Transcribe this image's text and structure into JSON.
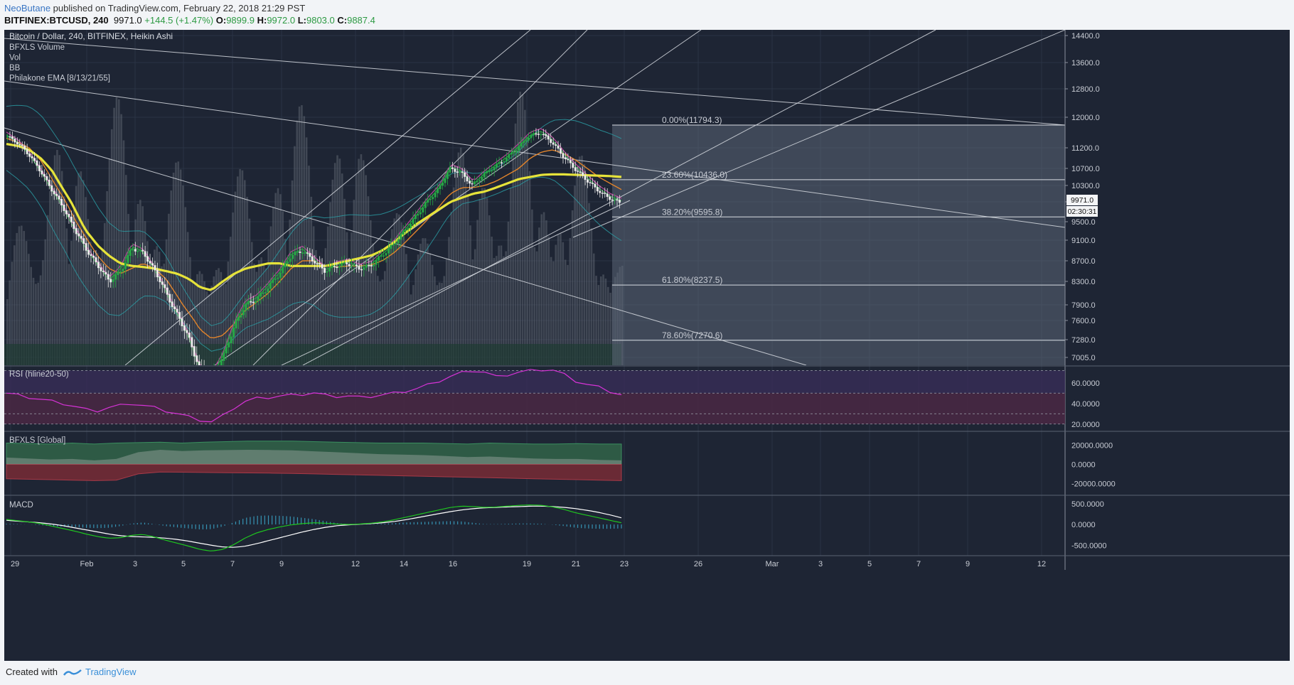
{
  "header": {
    "publisher": "NeoButane",
    "published_text": " published on TradingView.com, February 22, 2018 21:29 PST",
    "symbol": "BITFINEX:BTCUSD, 240",
    "last": "9971.0",
    "change": "+144.5 (+1.47%)",
    "o_label": "O:",
    "o": "9899.9",
    "h_label": "H:",
    "h": "9972.0",
    "l_label": "L:",
    "l": "9803.0",
    "c_label": "C:",
    "c": "9887.4"
  },
  "legend": {
    "title": "Bitcoin / Dollar, 240, BITFINEX, Heikin Ashi",
    "items": [
      "BFXLS Volume",
      "Vol",
      "BB",
      "Philakone EMA [8/13/21/55]"
    ]
  },
  "footer": {
    "created_with": "Created with",
    "brand": "TradingView"
  },
  "colors": {
    "background": "#1e2534",
    "grid": "#2a3345",
    "up_candle": "#26a745",
    "down_candle": "#e8e8e8",
    "ema55": "#e6e33a",
    "ema21": "#e2842b",
    "ema13": "#b8459b",
    "ema8": "#2d9a43",
    "bb": "#2aa0a8",
    "rsi": "#d633d6",
    "macd": "#1fc61f",
    "signal": "#ffffff",
    "hist": "#3aa6c8"
  },
  "chart_data": [
    {
      "type": "candlestick",
      "title": "Bitcoin / Dollar, 240, BITFINEX, Heikin Ashi",
      "y_ticks": [
        "14400.0",
        "13600.0",
        "12800.0",
        "12000.0",
        "11200.0",
        "10700.0",
        "10300.0",
        "9900.0",
        "9500.0",
        "9100.0",
        "8700.0",
        "8300.0",
        "7900.0",
        "7600.0",
        "7280.0",
        "7005.0"
      ],
      "last_price_label": "9971.0",
      "countdown_label": "02:30:31",
      "x_ticks": [
        "29",
        "Feb",
        "3",
        "5",
        "7",
        "9",
        "12",
        "14",
        "16",
        "19",
        "21",
        "23",
        "26",
        "Mar",
        "3",
        "5",
        "7",
        "9",
        "12"
      ],
      "price_path": [
        11500,
        11300,
        11000,
        10600,
        10150,
        9750,
        9300,
        8900,
        8600,
        8300,
        8500,
        8950,
        8850,
        8500,
        8100,
        7700,
        7300,
        6800,
        6700,
        7000,
        7500,
        7900,
        8000,
        8200,
        8450,
        8800,
        8900,
        8700,
        8500,
        8600,
        8650,
        8550,
        8600,
        8800,
        9000,
        9300,
        9600,
        9900,
        10200,
        10700,
        10600,
        10300,
        10550,
        10750,
        10950,
        11200,
        11500,
        11600,
        11350,
        11000,
        10700,
        10450,
        10200,
        10000,
        9887
      ],
      "ema55_path": [
        11300,
        11250,
        11150,
        10950,
        10650,
        10200,
        9750,
        9300,
        9000,
        8800,
        8650,
        8600,
        8580,
        8550,
        8500,
        8450,
        8350,
        8200,
        8150,
        8300,
        8450,
        8550,
        8600,
        8650,
        8650,
        8600,
        8600,
        8600,
        8600,
        8650,
        8700,
        8750,
        8800,
        8900,
        9050,
        9250,
        9450,
        9600,
        9750,
        9900,
        10000,
        10100,
        10150,
        10250,
        10350,
        10450,
        10500,
        10550,
        10560,
        10560,
        10550,
        10540,
        10530,
        10520,
        10500
      ],
      "ema21_path": [
        11450,
        11350,
        11200,
        10900,
        10450,
        10000,
        9550,
        9150,
        8800,
        8550,
        8450,
        8550,
        8650,
        8550,
        8350,
        8050,
        7750,
        7450,
        7300,
        7350,
        7550,
        7800,
        7950,
        8100,
        8300,
        8550,
        8700,
        8700,
        8600,
        8580,
        8600,
        8600,
        8620,
        8700,
        8850,
        9050,
        9300,
        9550,
        9800,
        10100,
        10250,
        10250,
        10300,
        10400,
        10550,
        10700,
        10950,
        11100,
        11150,
        11050,
        10900,
        10700,
        10500,
        10350,
        10200
      ],
      "fib_levels": [
        {
          "label": "0.00%(11794.3)",
          "price": 11794.3
        },
        {
          "label": "23.60%(10436.0)",
          "price": 10436.0
        },
        {
          "label": "38.20%(9595.8)",
          "price": 9595.8
        },
        {
          "label": "61.80%(8237.5)",
          "price": 8237.5
        },
        {
          "label": "78.60%(7270.6)",
          "price": 7270.6
        }
      ]
    },
    {
      "type": "line",
      "title": "RSI (hline20-50)",
      "y_ticks": [
        "60.0000",
        "40.0000",
        "20.0000"
      ],
      "ylim": [
        15,
        75
      ],
      "values": [
        50,
        48,
        46,
        44,
        42,
        40,
        37,
        34,
        33,
        36,
        38,
        40,
        38,
        36,
        33,
        30,
        27,
        24,
        22,
        28,
        36,
        42,
        45,
        46,
        47,
        48,
        49,
        50,
        48,
        47,
        47,
        46,
        47,
        48,
        50,
        52,
        54,
        58,
        62,
        66,
        70,
        72,
        70,
        66,
        68,
        70,
        72,
        73,
        72,
        68,
        62,
        58,
        56,
        52,
        48
      ]
    },
    {
      "type": "area",
      "title": "BFXLS [Global]",
      "y_ticks": [
        "20000.0000",
        "0.0000",
        "-20000.0000"
      ],
      "ylim": [
        -30000,
        32000
      ],
      "longs": [
        22000,
        21500,
        21000,
        22000,
        21000,
        22000,
        22500,
        23000,
        22000,
        23000,
        23500,
        24000,
        24000,
        24000,
        23500,
        23000,
        22500,
        22000,
        22000,
        22000,
        21500,
        21000,
        22000,
        21500,
        21000,
        21000,
        21500,
        21000,
        21000
      ],
      "shorts": [
        -15000,
        -15500,
        -16000,
        -16500,
        -17000,
        -16500,
        -10000,
        -8000,
        -8200,
        -8500,
        -8800,
        -9000,
        -9200,
        -9500,
        -10000,
        -10500,
        -11000,
        -11500,
        -12000,
        -12500,
        -13000,
        -13500,
        -14000,
        -14500,
        -15000,
        -15500,
        -16000,
        -16500,
        -17000
      ]
    },
    {
      "type": "line",
      "title": "MACD",
      "y_ticks": [
        "500.0000",
        "0.0000",
        "-500.0000"
      ],
      "ylim": [
        -750,
        650
      ],
      "macd": [
        120,
        90,
        60,
        20,
        -40,
        -100,
        -160,
        -230,
        -290,
        -330,
        -320,
        -260,
        -240,
        -300,
        -380,
        -450,
        -520,
        -600,
        -640,
        -600,
        -480,
        -320,
        -200,
        -120,
        -60,
        -10,
        20,
        40,
        30,
        10,
        0,
        10,
        30,
        60,
        110,
        170,
        230,
        290,
        350,
        410,
        440,
        430,
        410,
        420,
        440,
        460,
        470,
        460,
        420,
        360,
        280,
        220,
        160,
        100,
        40
      ],
      "signal": [
        100,
        80,
        60,
        40,
        10,
        -30,
        -80,
        -130,
        -180,
        -230,
        -270,
        -290,
        -300,
        -310,
        -330,
        -360,
        -400,
        -450,
        -500,
        -540,
        -550,
        -520,
        -460,
        -390,
        -320,
        -250,
        -180,
        -120,
        -70,
        -30,
        -10,
        5,
        20,
        40,
        70,
        110,
        160,
        210,
        260,
        310,
        350,
        380,
        400,
        410,
        420,
        430,
        440,
        440,
        430,
        410,
        380,
        340,
        290,
        230,
        160
      ]
    }
  ]
}
